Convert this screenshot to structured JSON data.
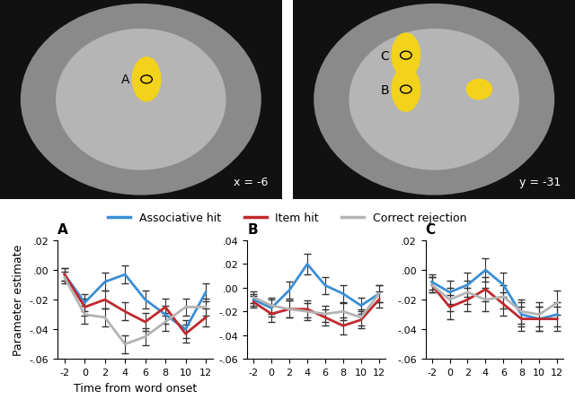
{
  "brain_slices": [
    {
      "label": "x = -6",
      "points": [
        "A"
      ]
    },
    {
      "label": "y = -31",
      "points": [
        "B",
        "C"
      ]
    }
  ],
  "chart_data": [
    {
      "type": "line",
      "title": "A",
      "xlabel": "Time from word onset",
      "ylabel": "Parameter estimate",
      "legend": "upper center",
      "x": [
        -2,
        0,
        2,
        4,
        6,
        8,
        10,
        12
      ],
      "xlim": [
        -2.7,
        12.7
      ],
      "xticks": [
        -2,
        0,
        2,
        4,
        6,
        8,
        10,
        12
      ],
      "ylim": [
        -0.06,
        0.02
      ],
      "yticks": [
        {
          "value": -0.06,
          "label": "-.06"
        },
        {
          "value": -0.04,
          "label": "-.04"
        },
        {
          "value": -0.02,
          "label": "-.02"
        },
        {
          "value": 0,
          "label": ".00"
        },
        {
          "value": 0.02,
          "label": ".02"
        }
      ],
      "series": [
        {
          "name": "Associative hit",
          "color": "#3a8fd6",
          "values": [
            -0.003,
            -0.022,
            -0.008,
            -0.003,
            -0.02,
            -0.03,
            -0.04,
            -0.015
          ],
          "errors": [
            0.004,
            0.006,
            0.006,
            0.006,
            0.006,
            0.006,
            0.006,
            0.006
          ]
        },
        {
          "name": "Item hit",
          "color": "#c0282d",
          "values": [
            -0.003,
            -0.025,
            -0.02,
            -0.028,
            -0.035,
            -0.025,
            -0.043,
            -0.032
          ],
          "errors": [
            0.004,
            0.006,
            0.006,
            0.006,
            0.006,
            0.006,
            0.006,
            0.006
          ]
        },
        {
          "name": "Correct rejection",
          "color": "#b3b3b3",
          "values": [
            -0.005,
            -0.03,
            -0.032,
            -0.05,
            -0.045,
            -0.035,
            -0.025,
            -0.025
          ],
          "errors": [
            0.004,
            0.006,
            0.006,
            0.006,
            0.006,
            0.006,
            0.006,
            0.006
          ]
        }
      ]
    },
    {
      "type": "line",
      "title": "B",
      "x": [
        -2,
        0,
        2,
        4,
        6,
        8,
        10,
        12
      ],
      "xlim": [
        -2.7,
        12.7
      ],
      "xticks": [
        -2,
        0,
        2,
        4,
        6,
        8,
        10,
        12
      ],
      "ylim": [
        -0.06,
        0.04
      ],
      "yticks": [
        {
          "value": -0.06,
          "label": "-.06"
        },
        {
          "value": -0.04,
          "label": "-.04"
        },
        {
          "value": -0.02,
          "label": "-.02"
        },
        {
          "value": 0,
          "label": ".00"
        },
        {
          "value": 0.02,
          "label": ".02"
        },
        {
          "value": 0.04,
          "label": ".04"
        }
      ],
      "series": [
        {
          "name": "Associative hit",
          "color": "#3a8fd6",
          "values": [
            -0.01,
            -0.017,
            -0.002,
            0.02,
            0.002,
            -0.005,
            -0.015,
            -0.005
          ],
          "errors": [
            0.005,
            0.007,
            0.007,
            0.009,
            0.007,
            0.007,
            0.007,
            0.007
          ]
        },
        {
          "name": "Item hit",
          "color": "#c0282d",
          "values": [
            -0.012,
            -0.022,
            -0.018,
            -0.018,
            -0.025,
            -0.032,
            -0.027,
            -0.01
          ],
          "errors": [
            0.005,
            0.007,
            0.007,
            0.007,
            0.007,
            0.007,
            0.007,
            0.007
          ]
        },
        {
          "name": "Correct rejection",
          "color": "#b3b3b3",
          "values": [
            -0.008,
            -0.015,
            -0.018,
            -0.02,
            -0.022,
            -0.02,
            -0.025,
            -0.005
          ],
          "errors": [
            0.005,
            0.007,
            0.007,
            0.007,
            0.007,
            0.007,
            0.007,
            0.007
          ]
        }
      ]
    },
    {
      "type": "line",
      "title": "C",
      "x": [
        -2,
        0,
        2,
        4,
        6,
        8,
        10,
        12
      ],
      "xlim": [
        -2.7,
        12.7
      ],
      "xticks": [
        -2,
        0,
        2,
        4,
        6,
        8,
        10,
        12
      ],
      "ylim": [
        -0.06,
        0.02
      ],
      "yticks": [
        {
          "value": -0.06,
          "label": "-.06"
        },
        {
          "value": -0.04,
          "label": "-.04"
        },
        {
          "value": -0.02,
          "label": "-.02"
        },
        {
          "value": 0,
          "label": ".00"
        },
        {
          "value": 0.02,
          "label": ".02"
        }
      ],
      "series": [
        {
          "name": "Associative hit",
          "color": "#3a8fd6",
          "values": [
            -0.008,
            -0.015,
            -0.01,
            0.0,
            -0.01,
            -0.03,
            -0.033,
            -0.03
          ],
          "errors": [
            0.005,
            0.008,
            0.008,
            0.008,
            0.008,
            0.008,
            0.008,
            0.008
          ]
        },
        {
          "name": "Item hit",
          "color": "#c0282d",
          "values": [
            -0.01,
            -0.025,
            -0.02,
            -0.013,
            -0.023,
            -0.033,
            -0.033,
            -0.033
          ],
          "errors": [
            0.005,
            0.008,
            0.008,
            0.008,
            0.008,
            0.008,
            0.008,
            0.008
          ]
        },
        {
          "name": "Correct rejection",
          "color": "#b3b3b3",
          "values": [
            -0.01,
            -0.02,
            -0.015,
            -0.02,
            -0.018,
            -0.028,
            -0.03,
            -0.022
          ],
          "errors": [
            0.005,
            0.008,
            0.008,
            0.008,
            0.008,
            0.008,
            0.008,
            0.008
          ]
        }
      ]
    }
  ]
}
